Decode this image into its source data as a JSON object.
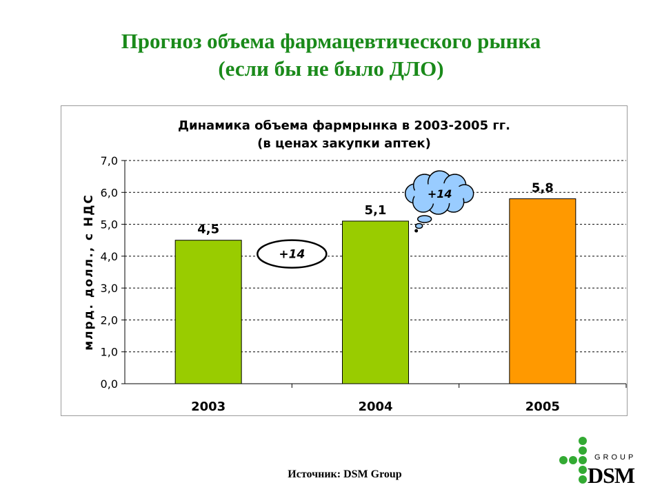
{
  "slide": {
    "title_line1": "Прогноз объема фармацевтического рынка",
    "title_line2": "(если бы не было ДЛО)",
    "source": "Источник: DSM Group",
    "logo_text": "DSM",
    "logo_subtext": "GROUP"
  },
  "chart_data": {
    "type": "bar",
    "title": "Динамика объема фармрынка в 2003-2005 гг.",
    "subtitle": "(в ценах закупки аптек)",
    "ylabel": "млрд. долл., с НДС",
    "xlabel": "",
    "categories": [
      "2003",
      "2004",
      "2005"
    ],
    "values": [
      4.5,
      5.1,
      5.8
    ],
    "value_labels": [
      "4,5",
      "5,1",
      "5,8"
    ],
    "bar_colors": [
      "#99cc00",
      "#99cc00",
      "#ff9900"
    ],
    "ylim": [
      0,
      7
    ],
    "yticks": [
      "0,0",
      "1,0",
      "2,0",
      "3,0",
      "4,0",
      "5,0",
      "6,0",
      "7,0"
    ],
    "grid": true,
    "legend": "none",
    "annotations": [
      {
        "text": "+14",
        "shape": "ellipse",
        "between": [
          "2003",
          "2004"
        ]
      },
      {
        "text": "+14",
        "shape": "cloud",
        "between": [
          "2004",
          "2005"
        ],
        "fill": "#99ccff"
      }
    ]
  }
}
